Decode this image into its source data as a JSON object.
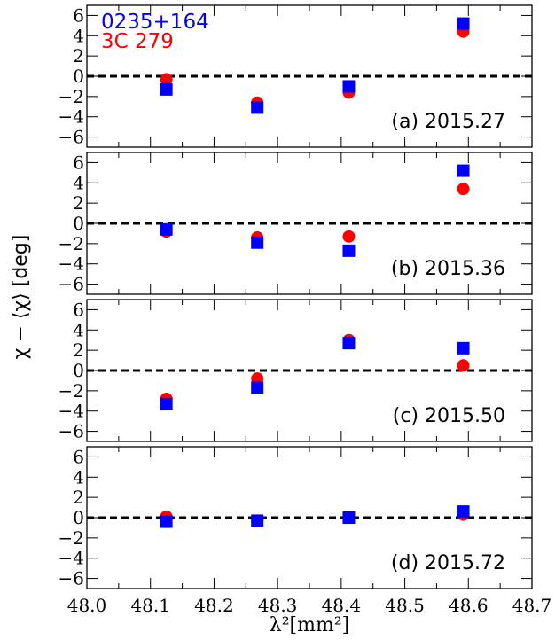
{
  "chart_data": {
    "type": "scatter",
    "xlabel": "λ²[mm²]",
    "ylabel": "χ − ⟨χ⟩ [deg]",
    "xlim": [
      48.0,
      48.7
    ],
    "ylim": [
      -7,
      7
    ],
    "x_ticks": [
      48.0,
      48.1,
      48.2,
      48.3,
      48.4,
      48.5,
      48.6,
      48.7
    ],
    "x_tick_labels": [
      "48.0",
      "48.1",
      "48.2",
      "48.3",
      "48.4",
      "48.5",
      "48.6",
      "48.7"
    ],
    "y_ticks": [
      -6,
      -4,
      -2,
      0,
      2,
      4,
      6
    ],
    "y_tick_labels": [
      "−6",
      "−4",
      "−2",
      "0",
      "2",
      "4",
      "6"
    ],
    "zero_line": {
      "y": 0,
      "style": "dashed",
      "color": "#000000"
    },
    "legend": {
      "placement": "top-left",
      "entries": [
        {
          "label": "0235+164",
          "color": "#0000ff"
        },
        {
          "label": "3C 279",
          "color": "#ff0000"
        }
      ]
    },
    "series_styles": [
      {
        "name": "0235+164",
        "marker": "square",
        "color": "#0000ff"
      },
      {
        "name": "3C 279",
        "marker": "circle",
        "color": "#ff0000"
      }
    ],
    "panels": [
      {
        "label": "(a) 2015.27",
        "series": [
          {
            "name": "3C 279",
            "points": [
              [
                48.125,
                -0.3
              ],
              [
                48.268,
                -2.6
              ],
              [
                48.412,
                -1.6
              ],
              [
                48.592,
                4.4
              ]
            ]
          },
          {
            "name": "0235+164",
            "points": [
              [
                48.125,
                -1.3
              ],
              [
                48.268,
                -3.1
              ],
              [
                48.412,
                -1.0
              ],
              [
                48.592,
                5.2
              ]
            ]
          }
        ]
      },
      {
        "label": "(b) 2015.36",
        "series": [
          {
            "name": "3C 279",
            "points": [
              [
                48.125,
                -0.8
              ],
              [
                48.268,
                -1.4
              ],
              [
                48.412,
                -1.3
              ],
              [
                48.592,
                3.4
              ]
            ]
          },
          {
            "name": "0235+164",
            "points": [
              [
                48.125,
                -0.6
              ],
              [
                48.268,
                -1.9
              ],
              [
                48.412,
                -2.7
              ],
              [
                48.592,
                5.2
              ]
            ]
          }
        ]
      },
      {
        "label": "(c) 2015.50",
        "series": [
          {
            "name": "3C 279",
            "points": [
              [
                48.125,
                -2.8
              ],
              [
                48.268,
                -0.8
              ],
              [
                48.412,
                3.0
              ],
              [
                48.592,
                0.5
              ]
            ]
          },
          {
            "name": "0235+164",
            "points": [
              [
                48.125,
                -3.3
              ],
              [
                48.268,
                -1.7
              ],
              [
                48.412,
                2.7
              ],
              [
                48.592,
                2.2
              ]
            ]
          }
        ]
      },
      {
        "label": "(d) 2015.72",
        "series": [
          {
            "name": "3C 279",
            "points": [
              [
                48.125,
                0.1
              ],
              [
                48.268,
                -0.3
              ],
              [
                48.412,
                0.0
              ],
              [
                48.592,
                0.3
              ]
            ]
          },
          {
            "name": "0235+164",
            "points": [
              [
                48.125,
                -0.4
              ],
              [
                48.268,
                -0.3
              ],
              [
                48.412,
                0.0
              ],
              [
                48.592,
                0.6
              ]
            ]
          }
        ]
      }
    ]
  }
}
